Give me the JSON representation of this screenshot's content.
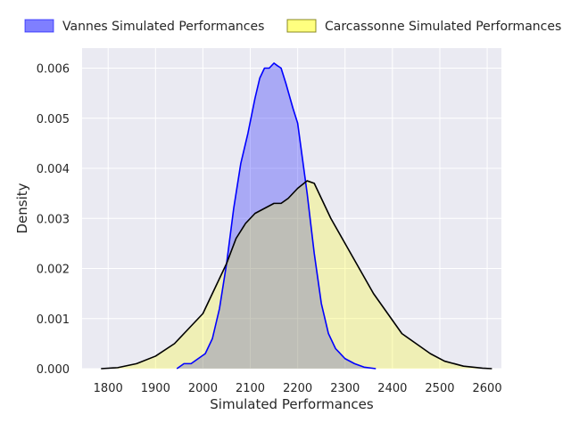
{
  "colors": {
    "plot_background": "#eaeaf2",
    "grid": "#ffffff",
    "vannes_fill": "#0000ff",
    "vannes_line": "#0000ff",
    "carcassonne_fill": "#ffff00",
    "carcassonne_line": "#000000"
  },
  "legend": {
    "placement": "top, above plot",
    "items": [
      {
        "label": "Vannes Simulated Performances"
      },
      {
        "label": "Carcassonne Simulated Performances"
      }
    ]
  },
  "chart_data": {
    "type": "area",
    "subtype": "kde-density",
    "title": "",
    "xlabel": "Simulated Performances",
    "ylabel": "Density",
    "xlim": [
      1745,
      2630
    ],
    "ylim": [
      0,
      0.0064
    ],
    "grid": true,
    "x_ticks": [
      1800,
      1900,
      2000,
      2100,
      2200,
      2300,
      2400,
      2500,
      2600
    ],
    "x_tick_labels": [
      "1800",
      "1900",
      "2000",
      "2100",
      "2200",
      "2300",
      "2400",
      "2500",
      "2600"
    ],
    "y_ticks": [
      0,
      0.001,
      0.002,
      0.003,
      0.004,
      0.005,
      0.006
    ],
    "y_tick_labels": [
      "0.000",
      "0.001",
      "0.002",
      "0.003",
      "0.004",
      "0.005",
      "0.006"
    ],
    "series": [
      {
        "name": "Vannes Simulated Performances",
        "x": [
          1945,
          1960,
          1975,
          1990,
          2005,
          2020,
          2035,
          2050,
          2065,
          2080,
          2095,
          2110,
          2120,
          2130,
          2140,
          2150,
          2157,
          2165,
          2175,
          2190,
          2200,
          2210,
          2220,
          2235,
          2250,
          2265,
          2280,
          2300,
          2320,
          2340,
          2365
        ],
        "y": [
          0.0,
          0.0001,
          0.0001,
          0.0002,
          0.0003,
          0.0006,
          0.0012,
          0.0021,
          0.0032,
          0.0041,
          0.0047,
          0.0054,
          0.0058,
          0.006,
          0.006,
          0.0061,
          0.00605,
          0.006,
          0.0057,
          0.0052,
          0.0049,
          0.0042,
          0.0035,
          0.0023,
          0.0013,
          0.0007,
          0.0004,
          0.0002,
          0.0001,
          3e-05,
          0.0
        ]
      },
      {
        "name": "Carcassonne Simulated Performances",
        "x": [
          1785,
          1820,
          1860,
          1900,
          1940,
          1970,
          2000,
          2025,
          2050,
          2070,
          2090,
          2110,
          2130,
          2150,
          2165,
          2180,
          2200,
          2220,
          2235,
          2250,
          2270,
          2300,
          2330,
          2360,
          2390,
          2420,
          2450,
          2480,
          2510,
          2550,
          2590,
          2610
        ],
        "y": [
          0.0,
          2e-05,
          0.0001,
          0.00025,
          0.0005,
          0.0008,
          0.0011,
          0.0016,
          0.0021,
          0.0026,
          0.0029,
          0.0031,
          0.0032,
          0.0033,
          0.0033,
          0.0034,
          0.0036,
          0.00375,
          0.0037,
          0.0034,
          0.003,
          0.0025,
          0.002,
          0.0015,
          0.0011,
          0.0007,
          0.0005,
          0.0003,
          0.00015,
          5e-05,
          1e-05,
          0.0
        ]
      }
    ]
  }
}
